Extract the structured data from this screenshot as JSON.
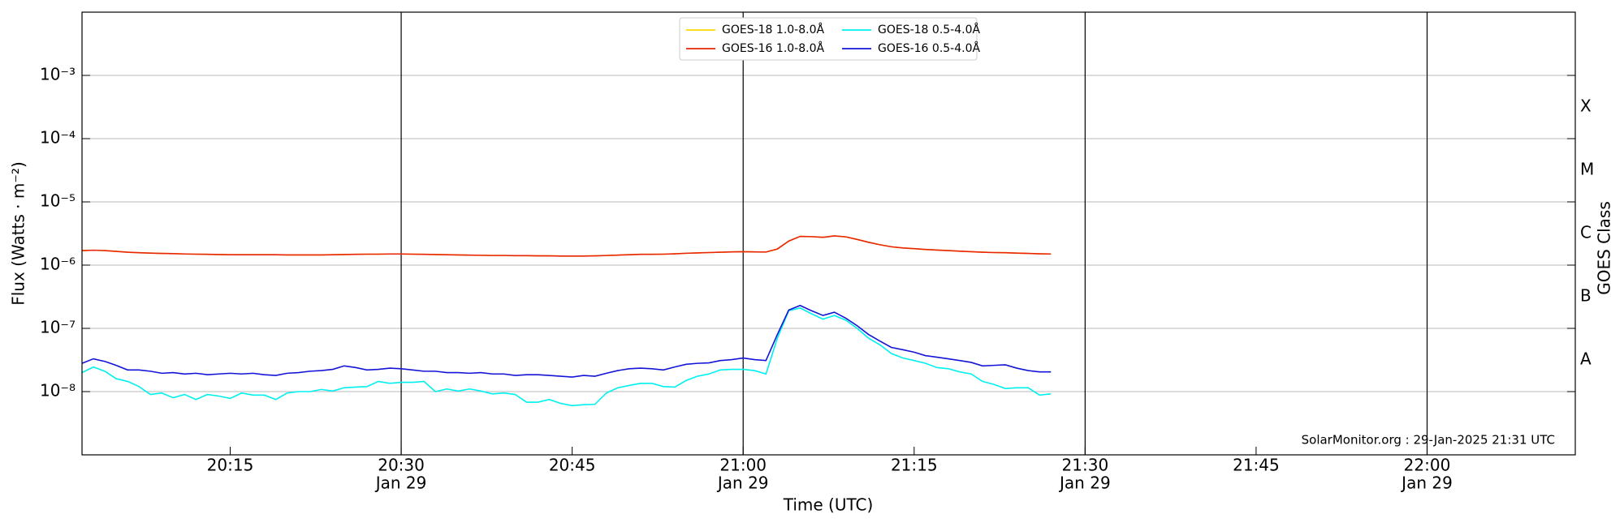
{
  "chart_data": {
    "type": "line",
    "ylabel": "Flux (Watts · m⁻²)",
    "xlabel": "Time (UTC)",
    "y2label": "GOES Class",
    "annotation": "SolarMonitor.org : 29-Jan-2025 21:31 UTC",
    "log_y": true,
    "grid": "y",
    "legend": "upper center",
    "ylim": [
      1e-09,
      0.01
    ],
    "yticks": [
      {
        "value": 1e-08,
        "label": "10⁻⁸"
      },
      {
        "value": 1e-07,
        "label": "10⁻⁷"
      },
      {
        "value": 1e-06,
        "label": "10⁻⁶"
      },
      {
        "value": 1e-05,
        "label": "10⁻⁵"
      },
      {
        "value": 0.0001,
        "label": "10⁻⁴"
      },
      {
        "value": 0.001,
        "label": "10⁻³"
      }
    ],
    "y2ticks": [
      {
        "value": 1e-08,
        "label": "A"
      },
      {
        "value": 1e-07,
        "label": "B"
      },
      {
        "value": 1e-06,
        "label": "C"
      },
      {
        "value": 1e-05,
        "label": "M"
      },
      {
        "value": 0.0001,
        "label": "X"
      }
    ],
    "xlim": [
      "20:02",
      "22:13"
    ],
    "xticks": [
      "20:15",
      {
        "value": "20:30",
        "label": "20:30",
        "sublabel": "Jan 29"
      },
      "20:45",
      {
        "value": "21:00",
        "label": "21:00",
        "sublabel": "Jan 29"
      },
      "21:15",
      {
        "value": "21:30",
        "label": "21:30",
        "sublabel": "Jan 29"
      },
      "21:45",
      {
        "value": "22:00",
        "label": "22:00",
        "sublabel": "Jan 29"
      }
    ],
    "x": [
      "20:02",
      "20:03",
      "20:04",
      "20:05",
      "20:06",
      "20:07",
      "20:08",
      "20:09",
      "20:10",
      "20:11",
      "20:12",
      "20:13",
      "20:14",
      "20:15",
      "20:16",
      "20:17",
      "20:18",
      "20:19",
      "20:20",
      "20:21",
      "20:22",
      "20:23",
      "20:24",
      "20:25",
      "20:26",
      "20:27",
      "20:28",
      "20:29",
      "20:30",
      "20:31",
      "20:32",
      "20:33",
      "20:34",
      "20:35",
      "20:36",
      "20:37",
      "20:38",
      "20:39",
      "20:40",
      "20:41",
      "20:42",
      "20:43",
      "20:44",
      "20:45",
      "20:46",
      "20:47",
      "20:48",
      "20:49",
      "20:50",
      "20:51",
      "20:52",
      "20:53",
      "20:54",
      "20:55",
      "20:56",
      "20:57",
      "20:58",
      "20:59",
      "21:00",
      "21:01",
      "21:02",
      "21:03",
      "21:04",
      "21:05",
      "21:06",
      "21:07",
      "21:08",
      "21:09",
      "21:10",
      "21:11",
      "21:12",
      "21:13",
      "21:14",
      "21:15",
      "21:16",
      "21:17",
      "21:18",
      "21:19",
      "21:20",
      "21:21",
      "21:22",
      "21:23",
      "21:24",
      "21:25",
      "21:26",
      "21:27"
    ],
    "series": [
      {
        "name": "GOES-18 1.0-8.0Å",
        "color": "#ffd700",
        "values": [
          1.7e-06,
          1.72e-06,
          1.7e-06,
          1.65e-06,
          1.6e-06,
          1.57e-06,
          1.55e-06,
          1.53e-06,
          1.52e-06,
          1.5e-06,
          1.49e-06,
          1.48e-06,
          1.47e-06,
          1.46e-06,
          1.46e-06,
          1.46e-06,
          1.46e-06,
          1.46e-06,
          1.45e-06,
          1.45e-06,
          1.45e-06,
          1.45e-06,
          1.46e-06,
          1.47e-06,
          1.48e-06,
          1.49e-06,
          1.49e-06,
          1.5e-06,
          1.5e-06,
          1.49e-06,
          1.48e-06,
          1.47e-06,
          1.46e-06,
          1.45e-06,
          1.44e-06,
          1.43e-06,
          1.42e-06,
          1.42e-06,
          1.41e-06,
          1.41e-06,
          1.4e-06,
          1.4e-06,
          1.39e-06,
          1.39e-06,
          1.39e-06,
          1.4e-06,
          1.42e-06,
          1.44e-06,
          1.46e-06,
          1.48e-06,
          1.48e-06,
          1.49e-06,
          1.51e-06,
          1.54e-06,
          1.56e-06,
          1.58e-06,
          1.6e-06,
          1.62e-06,
          1.63e-06,
          1.62e-06,
          1.61e-06,
          1.8e-06,
          2.4e-06,
          2.85e-06,
          2.82e-06,
          2.75e-06,
          2.9e-06,
          2.8e-06,
          2.55e-06,
          2.3e-06,
          2.1e-06,
          1.95e-06,
          1.87e-06,
          1.82e-06,
          1.77e-06,
          1.73e-06,
          1.7e-06,
          1.66e-06,
          1.63e-06,
          1.6e-06,
          1.58e-06,
          1.57e-06,
          1.55e-06,
          1.53e-06,
          1.51e-06,
          1.5e-06
        ]
      },
      {
        "name": "GOES-16 1.0-8.0Å",
        "color": "#e8250a",
        "values": [
          1.7e-06,
          1.72e-06,
          1.7e-06,
          1.65e-06,
          1.6e-06,
          1.57e-06,
          1.55e-06,
          1.53e-06,
          1.52e-06,
          1.5e-06,
          1.49e-06,
          1.48e-06,
          1.47e-06,
          1.46e-06,
          1.46e-06,
          1.46e-06,
          1.46e-06,
          1.46e-06,
          1.45e-06,
          1.45e-06,
          1.45e-06,
          1.45e-06,
          1.46e-06,
          1.47e-06,
          1.48e-06,
          1.49e-06,
          1.49e-06,
          1.5e-06,
          1.5e-06,
          1.49e-06,
          1.48e-06,
          1.47e-06,
          1.46e-06,
          1.45e-06,
          1.44e-06,
          1.43e-06,
          1.42e-06,
          1.42e-06,
          1.41e-06,
          1.41e-06,
          1.4e-06,
          1.4e-06,
          1.39e-06,
          1.39e-06,
          1.39e-06,
          1.4e-06,
          1.42e-06,
          1.44e-06,
          1.46e-06,
          1.48e-06,
          1.48e-06,
          1.49e-06,
          1.51e-06,
          1.54e-06,
          1.56e-06,
          1.58e-06,
          1.6e-06,
          1.62e-06,
          1.63e-06,
          1.62e-06,
          1.61e-06,
          1.8e-06,
          2.4e-06,
          2.85e-06,
          2.82e-06,
          2.75e-06,
          2.9e-06,
          2.8e-06,
          2.55e-06,
          2.3e-06,
          2.1e-06,
          1.95e-06,
          1.87e-06,
          1.82e-06,
          1.77e-06,
          1.73e-06,
          1.7e-06,
          1.66e-06,
          1.63e-06,
          1.6e-06,
          1.58e-06,
          1.57e-06,
          1.55e-06,
          1.53e-06,
          1.51e-06,
          1.5e-06
        ]
      },
      {
        "name": "GOES-18 0.5-4.0Å",
        "color": "#00f0f0",
        "values": [
          2e-08,
          2.45e-08,
          2.1e-08,
          1.6e-08,
          1.45e-08,
          1.2e-08,
          9e-09,
          9.5e-09,
          8e-09,
          9e-09,
          7.5e-09,
          9e-09,
          8.5e-09,
          7.8e-09,
          9.5e-09,
          8.8e-09,
          8.8e-09,
          7.5e-09,
          9.5e-09,
          1e-08,
          1e-08,
          1.08e-08,
          1.02e-08,
          1.15e-08,
          1.18e-08,
          1.2e-08,
          1.45e-08,
          1.35e-08,
          1.4e-08,
          1.4e-08,
          1.45e-08,
          1e-08,
          1.1e-08,
          1.02e-08,
          1.1e-08,
          1.02e-08,
          9.2e-09,
          9.5e-09,
          9e-09,
          6.8e-09,
          6.8e-09,
          7.5e-09,
          6.5e-09,
          6e-09,
          6.2e-09,
          6.3e-09,
          9.5e-09,
          1.15e-08,
          1.25e-08,
          1.35e-08,
          1.35e-08,
          1.2e-08,
          1.18e-08,
          1.5e-08,
          1.75e-08,
          1.9e-08,
          2.2e-08,
          2.25e-08,
          2.25e-08,
          2.15e-08,
          1.9e-08,
          7e-08,
          1.9e-07,
          2.1e-07,
          1.7e-07,
          1.4e-07,
          1.6e-07,
          1.35e-07,
          1e-07,
          7e-08,
          5.5e-08,
          4e-08,
          3.4e-08,
          3.1e-08,
          2.8e-08,
          2.4e-08,
          2.3e-08,
          2.05e-08,
          1.9e-08,
          1.45e-08,
          1.3e-08,
          1.12e-08,
          1.15e-08,
          1.15e-08,
          8.8e-09,
          9.2e-09
        ]
      },
      {
        "name": "GOES-16 0.5-4.0Å",
        "color": "#1414d8",
        "values": [
          2.8e-08,
          3.3e-08,
          3e-08,
          2.6e-08,
          2.2e-08,
          2.2e-08,
          2.1e-08,
          1.95e-08,
          2e-08,
          1.9e-08,
          1.95e-08,
          1.85e-08,
          1.9e-08,
          1.95e-08,
          1.9e-08,
          1.95e-08,
          1.85e-08,
          1.8e-08,
          1.95e-08,
          2e-08,
          2.1e-08,
          2.15e-08,
          2.25e-08,
          2.55e-08,
          2.4e-08,
          2.2e-08,
          2.25e-08,
          2.35e-08,
          2.3e-08,
          2.2e-08,
          2.1e-08,
          2.1e-08,
          2e-08,
          2e-08,
          1.95e-08,
          2e-08,
          1.9e-08,
          1.9e-08,
          1.8e-08,
          1.85e-08,
          1.85e-08,
          1.8e-08,
          1.75e-08,
          1.7e-08,
          1.8e-08,
          1.75e-08,
          1.95e-08,
          2.15e-08,
          2.3e-08,
          2.35e-08,
          2.3e-08,
          2.2e-08,
          2.45e-08,
          2.7e-08,
          2.8e-08,
          2.85e-08,
          3.1e-08,
          3.2e-08,
          3.4e-08,
          3.2e-08,
          3.1e-08,
          8e-08,
          1.95e-07,
          2.3e-07,
          1.9e-07,
          1.6e-07,
          1.8e-07,
          1.45e-07,
          1.1e-07,
          8e-08,
          6.3e-08,
          5e-08,
          4.6e-08,
          4.2e-08,
          3.7e-08,
          3.5e-08,
          3.3e-08,
          3.1e-08,
          2.9e-08,
          2.55e-08,
          2.6e-08,
          2.65e-08,
          2.35e-08,
          2.15e-08,
          2.05e-08,
          2.05e-08
        ]
      }
    ]
  }
}
